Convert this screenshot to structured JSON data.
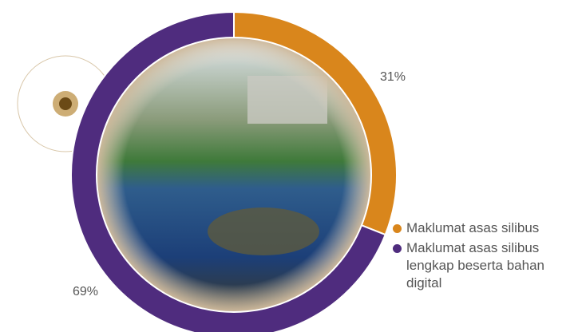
{
  "chart_data": {
    "type": "donut",
    "categories": [
      "Maklumat asas silibus",
      "Maklumat asas silibus lengkap beserta bahan digital"
    ],
    "values": [
      31,
      69
    ],
    "value_labels": [
      "31%",
      "69%"
    ],
    "colors": [
      "#d9861c",
      "#4f2c7e"
    ]
  }
}
